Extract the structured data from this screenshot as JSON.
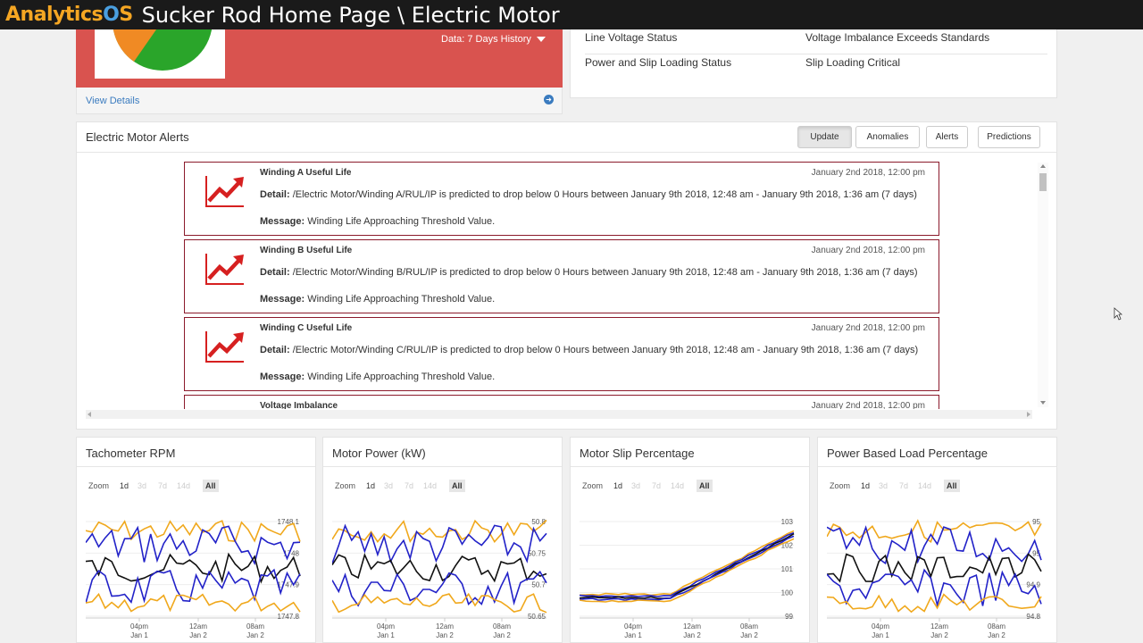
{
  "header": {
    "logo_part1": "Analytics",
    "logo_part2": "O",
    "logo_part3": "S",
    "title": "Sucker Rod Home Page \\ Electric Motor"
  },
  "summary_card": {
    "history_label": "Data: 7 Days History",
    "view_details": "View Details"
  },
  "status": [
    {
      "label": "Line Voltage Status",
      "value": "Voltage Imbalance Exceeds Standards"
    },
    {
      "label": "Power and Slip Loading Status",
      "value": "Slip Loading Critical"
    }
  ],
  "alerts_panel": {
    "title": "Electric Motor Alerts",
    "tabs": [
      "Update",
      "Anomalies",
      "Alerts",
      "Predictions"
    ],
    "active_tab": "Update",
    "detail_label": "Detail:",
    "message_label": "Message:",
    "alerts": [
      {
        "title": "Winding A Useful Life",
        "date": "January 2nd 2018, 12:00 pm",
        "detail": "/Electric Motor/Winding A/RUL/IP is predicted to drop below 0 Hours between January 9th 2018, 12:48 am - January 9th 2018, 1:36 am (7 days)",
        "message": "Winding Life Approaching Threshold Value."
      },
      {
        "title": "Winding B Useful Life",
        "date": "January 2nd 2018, 12:00 pm",
        "detail": "/Electric Motor/Winding B/RUL/IP is predicted to drop below 0 Hours between January 9th 2018, 12:48 am - January 9th 2018, 1:36 am (7 days)",
        "message": "Winding Life Approaching Threshold Value."
      },
      {
        "title": "Winding C Useful Life",
        "date": "January 2nd 2018, 12:00 pm",
        "detail": "/Electric Motor/Winding C/RUL/IP is predicted to drop below 0 Hours between January 9th 2018, 12:48 am - January 9th 2018, 1:36 am (7 days)",
        "message": "Winding Life Approaching Threshold Value."
      },
      {
        "title": "Voltage Imbalance",
        "date": "January 2nd 2018, 12:00 pm",
        "detail": "",
        "message": ""
      }
    ]
  },
  "zoom": {
    "label": "Zoom",
    "options": [
      "1d",
      "3d",
      "7d",
      "14d",
      "All"
    ],
    "selected": "All"
  },
  "colors": {
    "gold": "#f0a81c",
    "blue": "#2222c8",
    "black": "#111111",
    "alert_border": "#8b1a2b",
    "red_card": "#d9534f"
  },
  "chart_data": [
    {
      "type": "line",
      "title": "Tachometer RPM",
      "x_ticks": [
        [
          "04pm",
          "Jan 1"
        ],
        [
          "12am",
          "Jan 2"
        ],
        [
          "08am",
          "Jan 2"
        ]
      ],
      "y_ticks": [
        "1748.1",
        "1748",
        "1747.9",
        "1747.8"
      ],
      "ylim": [
        1747.78,
        1748.16
      ],
      "trend": "flat"
    },
    {
      "type": "line",
      "title": "Motor Power (kW)",
      "x_ticks": [
        [
          "04pm",
          "Jan 1"
        ],
        [
          "12am",
          "Jan 2"
        ],
        [
          "08am",
          "Jan 2"
        ]
      ],
      "y_ticks": [
        "50.8",
        "50.75",
        "50.7",
        "50.65"
      ],
      "ylim": [
        50.63,
        50.83
      ],
      "trend": "flat"
    },
    {
      "type": "line",
      "title": "Motor Slip Percentage",
      "x_ticks": [
        [
          "04pm",
          "Jan 1"
        ],
        [
          "12am",
          "Jan 2"
        ],
        [
          "08am",
          "Jan 2"
        ]
      ],
      "y_ticks": [
        "103",
        "102",
        "101",
        "100",
        "99"
      ],
      "ylim": [
        98.8,
        103.2
      ],
      "trend": "rising"
    },
    {
      "type": "line",
      "title": "Power Based Load Percentage",
      "x_ticks": [
        [
          "04pm",
          "Jan 1"
        ],
        [
          "12am",
          "Jan 2"
        ],
        [
          "08am",
          "Jan 2"
        ]
      ],
      "y_ticks": [
        "95",
        "95",
        "94.9",
        "94.8"
      ],
      "ylim": [
        94.78,
        95.12
      ],
      "trend": "flat"
    }
  ]
}
